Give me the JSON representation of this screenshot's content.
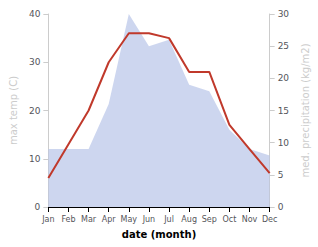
{
  "chart_data": {
    "type": "line",
    "categories": [
      "Jan",
      "Feb",
      "Mar",
      "Apr",
      "May",
      "Jun",
      "Jul",
      "Aug",
      "Sep",
      "Oct",
      "Nov",
      "Dec"
    ],
    "xlabel": "date (month)",
    "ylabel": "max temp (C)",
    "y2label": "med. precipitation (kg/m2)",
    "ylim": [
      0,
      40
    ],
    "yticks": [
      0,
      10,
      20,
      30,
      40
    ],
    "y2lim": [
      0,
      30
    ],
    "y2ticks": [
      0,
      5,
      10,
      15,
      20,
      25,
      30
    ],
    "grid": false,
    "series": [
      {
        "type": "area",
        "axis": "y2",
        "color": "#b8c4e8",
        "values": [
          9,
          9,
          9,
          16,
          30,
          25,
          26,
          19,
          18,
          12,
          9,
          8
        ]
      },
      {
        "type": "line",
        "color": "#c0392b",
        "values": [
          6,
          13,
          20,
          30,
          36,
          36,
          35,
          28,
          28,
          17,
          12,
          7
        ]
      }
    ]
  }
}
